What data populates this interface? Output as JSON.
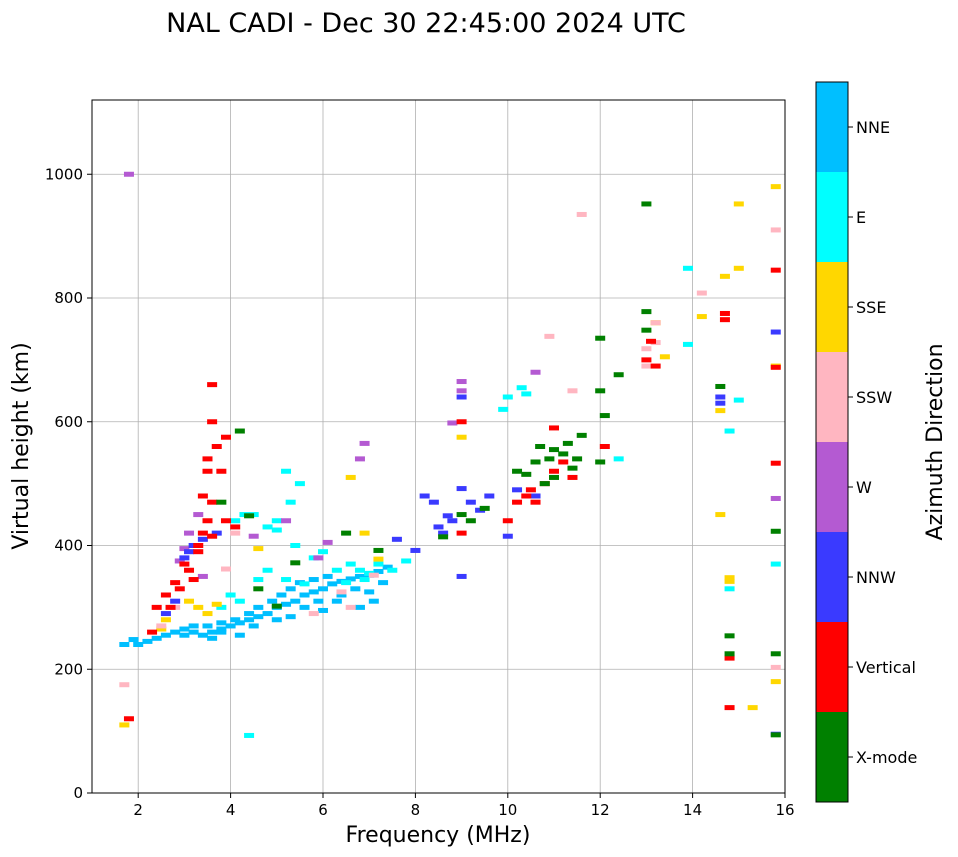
{
  "chart_data": {
    "type": "scatter",
    "title": "NAL CADI - Dec 30 22:45:00 2024 UTC",
    "xlabel": "Frequency (MHz)",
    "ylabel": "Virtual height (km)",
    "xlim": [
      1,
      16
    ],
    "ylim": [
      0,
      1120
    ],
    "xticks": [
      2,
      4,
      6,
      8,
      10,
      12,
      14,
      16
    ],
    "yticks": [
      0,
      200,
      400,
      600,
      800,
      1000
    ],
    "grid": true,
    "colorbar": {
      "title": "Azimuth Direction",
      "categories": [
        {
          "name": "X-mode",
          "color": "#008000"
        },
        {
          "name": "Vertical",
          "color": "#ff0000"
        },
        {
          "name": "NNW",
          "color": "#3a3aff"
        },
        {
          "name": "W",
          "color": "#b45ad2"
        },
        {
          "name": "SSW",
          "color": "#ffb6c1"
        },
        {
          "name": "SSE",
          "color": "#ffd700"
        },
        {
          "name": "E",
          "color": "#00ffff"
        },
        {
          "name": "NNE",
          "color": "#00bfff"
        }
      ]
    },
    "series": [
      {
        "name": "X-mode",
        "points": [
          [
            4.2,
            585
          ],
          [
            5.4,
            372
          ],
          [
            6.5,
            420
          ],
          [
            7.2,
            392
          ],
          [
            8.6,
            414
          ],
          [
            9.0,
            450
          ],
          [
            9.2,
            440
          ],
          [
            9.5,
            460
          ],
          [
            10.2,
            520
          ],
          [
            10.4,
            515
          ],
          [
            10.6,
            535
          ],
          [
            10.7,
            560
          ],
          [
            10.9,
            540
          ],
          [
            11.0,
            555
          ],
          [
            11.2,
            548
          ],
          [
            11.3,
            565
          ],
          [
            11.4,
            525
          ],
          [
            11.5,
            540
          ],
          [
            11.0,
            510
          ],
          [
            10.8,
            500
          ],
          [
            11.6,
            578
          ],
          [
            12.0,
            535
          ],
          [
            12.0,
            650
          ],
          [
            12.0,
            735
          ],
          [
            12.1,
            610
          ],
          [
            12.4,
            676
          ],
          [
            13.0,
            952
          ],
          [
            13.0,
            778
          ],
          [
            13.0,
            748
          ],
          [
            14.6,
            657
          ],
          [
            14.8,
            225
          ],
          [
            14.8,
            254
          ],
          [
            15.8,
            423
          ],
          [
            15.8,
            225
          ],
          [
            15.8,
            94
          ],
          [
            4.4,
            448
          ],
          [
            3.8,
            470
          ],
          [
            5.0,
            302
          ],
          [
            4.6,
            330
          ]
        ]
      },
      {
        "name": "Vertical",
        "points": [
          [
            3.1,
            360
          ],
          [
            3.2,
            345
          ],
          [
            3.3,
            400
          ],
          [
            3.4,
            420
          ],
          [
            3.5,
            440
          ],
          [
            3.6,
            470
          ],
          [
            3.4,
            480
          ],
          [
            3.5,
            520
          ],
          [
            3.3,
            390
          ],
          [
            3.0,
            370
          ],
          [
            2.9,
            330
          ],
          [
            2.7,
            300
          ],
          [
            2.8,
            340
          ],
          [
            3.6,
            660
          ],
          [
            3.9,
            575
          ],
          [
            3.7,
            560
          ],
          [
            3.8,
            520
          ],
          [
            3.9,
            440
          ],
          [
            4.1,
            430
          ],
          [
            3.6,
            415
          ],
          [
            2.6,
            320
          ],
          [
            2.4,
            300
          ],
          [
            3.5,
            540
          ],
          [
            3.6,
            600
          ],
          [
            9.0,
            600
          ],
          [
            9.0,
            420
          ],
          [
            10.0,
            440
          ],
          [
            10.2,
            470
          ],
          [
            10.4,
            480
          ],
          [
            10.5,
            490
          ],
          [
            10.6,
            470
          ],
          [
            10.8,
            500
          ],
          [
            11.0,
            520
          ],
          [
            11.2,
            535
          ],
          [
            11.4,
            510
          ],
          [
            11.0,
            590
          ],
          [
            12.1,
            560
          ],
          [
            13.0,
            700
          ],
          [
            13.1,
            730
          ],
          [
            13.2,
            690
          ],
          [
            14.7,
            775
          ],
          [
            14.7,
            765
          ],
          [
            15.8,
            845
          ],
          [
            15.8,
            688
          ],
          [
            15.8,
            533
          ],
          [
            14.8,
            218
          ],
          [
            14.8,
            138
          ],
          [
            1.8,
            120
          ],
          [
            2.3,
            260
          ]
        ]
      },
      {
        "name": "NNW",
        "points": [
          [
            3.0,
            380
          ],
          [
            3.1,
            390
          ],
          [
            3.2,
            400
          ],
          [
            3.4,
            410
          ],
          [
            3.7,
            420
          ],
          [
            2.8,
            310
          ],
          [
            2.6,
            290
          ],
          [
            8.0,
            392
          ],
          [
            8.2,
            480
          ],
          [
            8.4,
            470
          ],
          [
            8.5,
            430
          ],
          [
            8.6,
            420
          ],
          [
            8.7,
            448
          ],
          [
            8.8,
            440
          ],
          [
            9.0,
            492
          ],
          [
            9.2,
            470
          ],
          [
            9.4,
            457
          ],
          [
            9.6,
            480
          ],
          [
            9.0,
            350
          ],
          [
            10.0,
            415
          ],
          [
            10.2,
            490
          ],
          [
            10.6,
            480
          ],
          [
            14.6,
            640
          ],
          [
            14.6,
            630
          ],
          [
            15.8,
            745
          ],
          [
            15.8,
            95
          ],
          [
            7.6,
            410
          ],
          [
            9.0,
            640
          ]
        ]
      },
      {
        "name": "W",
        "points": [
          [
            3.1,
            420
          ],
          [
            3.0,
            395
          ],
          [
            2.9,
            375
          ],
          [
            3.3,
            450
          ],
          [
            1.8,
            1000
          ],
          [
            6.8,
            540
          ],
          [
            6.9,
            565
          ],
          [
            9.0,
            665
          ],
          [
            9.0,
            650
          ],
          [
            8.8,
            598
          ],
          [
            10.6,
            680
          ],
          [
            15.8,
            476
          ],
          [
            5.9,
            380
          ],
          [
            6.1,
            405
          ],
          [
            4.5,
            415
          ],
          [
            5.2,
            440
          ],
          [
            3.4,
            350
          ]
        ]
      },
      {
        "name": "SSW",
        "points": [
          [
            11.6,
            935
          ],
          [
            13.0,
            718
          ],
          [
            13.2,
            728
          ],
          [
            14.2,
            808
          ],
          [
            13.0,
            690
          ],
          [
            13.2,
            760
          ],
          [
            15.8,
            910
          ],
          [
            15.8,
            203
          ],
          [
            10.9,
            738
          ],
          [
            11.4,
            650
          ],
          [
            7.1,
            352
          ],
          [
            6.6,
            300
          ],
          [
            6.4,
            325
          ],
          [
            5.8,
            290
          ],
          [
            2.5,
            270
          ],
          [
            3.9,
            362
          ],
          [
            4.1,
            420
          ],
          [
            1.7,
            175
          ],
          [
            2.8,
            300
          ]
        ]
      },
      {
        "name": "SSE",
        "points": [
          [
            15.0,
            952
          ],
          [
            15.0,
            848
          ],
          [
            14.7,
            835
          ],
          [
            14.6,
            618
          ],
          [
            14.6,
            450
          ],
          [
            14.8,
            348
          ],
          [
            14.8,
            342
          ],
          [
            15.3,
            138
          ],
          [
            15.8,
            980
          ],
          [
            15.8,
            690
          ],
          [
            15.8,
            180
          ],
          [
            14.2,
            770
          ],
          [
            13.4,
            705
          ],
          [
            13.2,
            760
          ],
          [
            9.0,
            575
          ],
          [
            6.6,
            510
          ],
          [
            6.9,
            420
          ],
          [
            3.1,
            310
          ],
          [
            3.3,
            300
          ],
          [
            3.5,
            290
          ],
          [
            3.7,
            305
          ],
          [
            2.6,
            280
          ],
          [
            2.5,
            265
          ],
          [
            7.2,
            378
          ],
          [
            4.6,
            395
          ],
          [
            1.7,
            110
          ]
        ]
      },
      {
        "name": "E",
        "points": [
          [
            4.1,
            440
          ],
          [
            4.3,
            450
          ],
          [
            4.5,
            450
          ],
          [
            4.8,
            430
          ],
          [
            5.0,
            440
          ],
          [
            5.3,
            470
          ],
          [
            5.5,
            500
          ],
          [
            5.2,
            520
          ],
          [
            5.0,
            425
          ],
          [
            5.4,
            400
          ],
          [
            5.8,
            380
          ],
          [
            6.0,
            390
          ],
          [
            6.3,
            360
          ],
          [
            6.6,
            370
          ],
          [
            6.8,
            360
          ],
          [
            7.0,
            355
          ],
          [
            7.2,
            370
          ],
          [
            6.9,
            345
          ],
          [
            6.5,
            340
          ],
          [
            4.8,
            360
          ],
          [
            4.6,
            345
          ],
          [
            5.2,
            345
          ],
          [
            5.6,
            338
          ],
          [
            4.0,
            320
          ],
          [
            3.8,
            300
          ],
          [
            4.2,
            310
          ],
          [
            14.8,
            585
          ],
          [
            15.0,
            635
          ],
          [
            15.8,
            370
          ],
          [
            14.8,
            330
          ],
          [
            12.4,
            540
          ],
          [
            10.4,
            645
          ],
          [
            10.3,
            655
          ],
          [
            10.0,
            640
          ],
          [
            13.9,
            848
          ],
          [
            13.9,
            725
          ],
          [
            4.4,
            93
          ],
          [
            9.9,
            620
          ],
          [
            7.5,
            360
          ],
          [
            7.8,
            375
          ]
        ]
      },
      {
        "name": "NNE",
        "points": [
          [
            2.0,
            240
          ],
          [
            2.2,
            245
          ],
          [
            2.4,
            250
          ],
          [
            2.6,
            255
          ],
          [
            2.8,
            260
          ],
          [
            3.0,
            255
          ],
          [
            3.2,
            260
          ],
          [
            3.4,
            255
          ],
          [
            3.6,
            260
          ],
          [
            3.8,
            265
          ],
          [
            4.0,
            270
          ],
          [
            4.2,
            275
          ],
          [
            4.4,
            280
          ],
          [
            4.6,
            285
          ],
          [
            4.8,
            290
          ],
          [
            5.0,
            300
          ],
          [
            5.2,
            305
          ],
          [
            5.4,
            310
          ],
          [
            5.6,
            320
          ],
          [
            5.8,
            325
          ],
          [
            6.0,
            330
          ],
          [
            6.2,
            338
          ],
          [
            6.4,
            342
          ],
          [
            6.6,
            346
          ],
          [
            6.8,
            350
          ],
          [
            7.0,
            352
          ],
          [
            7.2,
            358
          ],
          [
            7.4,
            365
          ],
          [
            3.0,
            265
          ],
          [
            3.2,
            270
          ],
          [
            3.5,
            270
          ],
          [
            3.8,
            275
          ],
          [
            4.1,
            280
          ],
          [
            4.4,
            290
          ],
          [
            4.6,
            300
          ],
          [
            4.9,
            310
          ],
          [
            5.1,
            320
          ],
          [
            5.3,
            330
          ],
          [
            5.5,
            340
          ],
          [
            5.8,
            345
          ],
          [
            6.1,
            350
          ],
          [
            6.4,
            320
          ],
          [
            6.7,
            330
          ],
          [
            7.0,
            325
          ],
          [
            7.3,
            340
          ],
          [
            4.2,
            255
          ],
          [
            3.6,
            250
          ],
          [
            5.0,
            280
          ],
          [
            5.6,
            300
          ],
          [
            5.9,
            310
          ],
          [
            6.3,
            310
          ],
          [
            6.8,
            300
          ],
          [
            7.1,
            310
          ],
          [
            1.7,
            240
          ],
          [
            1.9,
            248
          ],
          [
            3.8,
            260
          ],
          [
            4.5,
            270
          ],
          [
            5.3,
            285
          ],
          [
            6.0,
            295
          ]
        ]
      }
    ]
  }
}
